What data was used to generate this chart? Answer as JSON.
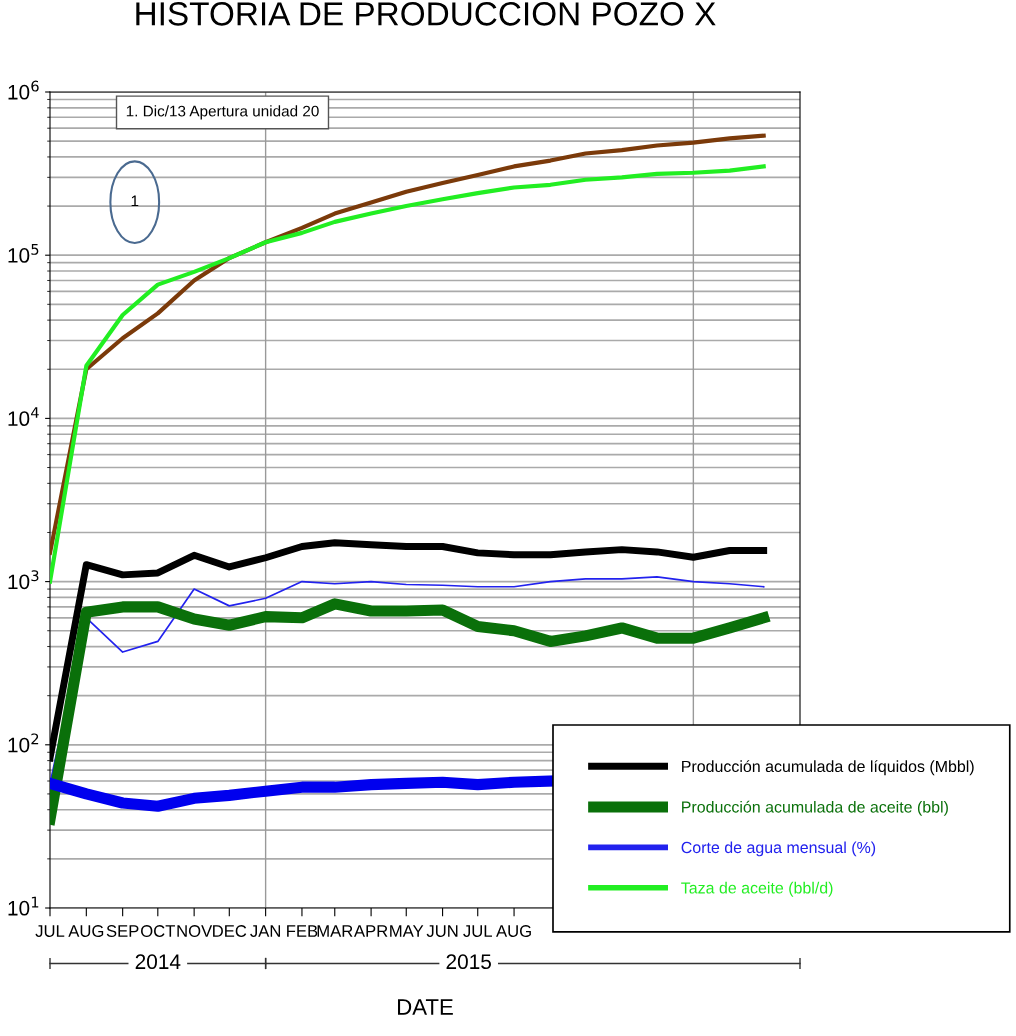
{
  "chart_data": {
    "type": "line",
    "title": "HISTORIA DE PRODUCCION POZO X",
    "xlabel": "DATE",
    "x": [
      "2014-07-01",
      "2014-08-01",
      "2014-09-01",
      "2014-10-01",
      "2014-11-01",
      "2014-12-01",
      "2015-01-01",
      "2015-02-01",
      "2015-03-01",
      "2015-04-01",
      "2015-05-01",
      "2015-06-01",
      "2015-07-01",
      "2015-08-01",
      "2015-09-01",
      "2015-10-01",
      "2015-11-01",
      "2015-12-01",
      "2016-01-01",
      "2016-02-01",
      "2016-03-01"
    ],
    "series": [
      {
        "color": "#7b3a0a",
        "values": [
          1500,
          20000,
          31000,
          44000,
          70000,
          96000,
          120000,
          147000,
          180000,
          210000,
          245000,
          277000,
          310000,
          350000,
          380000,
          420000,
          440000,
          470000,
          490000,
          520000,
          540000
        ]
      },
      {
        "name": "Taza de aceite (bbl/d)",
        "color": "#22ee22",
        "values": [
          1000,
          21000,
          43000,
          66000,
          79000,
          96000,
          120000,
          137000,
          160000,
          180000,
          200000,
          220000,
          240000,
          260000,
          270000,
          290000,
          300000,
          315000,
          320000,
          330000,
          350000
        ]
      },
      {
        "name": "Producción acumulada de líquidos (Mbbl)",
        "color": "#000000",
        "values": [
          83,
          1270,
          1100,
          1130,
          1450,
          1230,
          1400,
          1640,
          1730,
          1680,
          1640,
          1640,
          1500,
          1460,
          1460,
          1520,
          1570,
          1520,
          1410,
          1550,
          1550
        ]
      },
      {
        "name": "Corte de agua mensual (%)",
        "color": "#2222ee",
        "values": [
          58,
          600,
          370,
          430,
          900,
          710,
          790,
          1000,
          970,
          1000,
          960,
          950,
          930,
          930,
          1000,
          1040,
          1040,
          1070,
          1000,
          970,
          930
        ]
      },
      {
        "name": "Producción acumulada de aceite (bbl)",
        "color": "#0a700a",
        "values": [
          35,
          650,
          700,
          700,
          590,
          540,
          610,
          600,
          730,
          660,
          660,
          670,
          530,
          500,
          430,
          465,
          520,
          450,
          450,
          520,
          600
        ]
      },
      {
        "color": "#0000ee",
        "values": [
          58,
          50,
          44,
          42,
          47,
          49,
          52,
          55,
          55,
          57,
          58,
          59,
          57,
          59,
          60,
          null,
          null,
          null,
          null,
          null,
          null
        ]
      }
    ],
    "log": "y",
    "ylim": [
      10,
      1000000
    ],
    "yticks": [
      {
        "value": 10,
        "label": "10$^{1}$"
      },
      {
        "value": 100,
        "label": "10$^{2}$"
      },
      {
        "value": 1000,
        "label": "10$^{3}$"
      },
      {
        "value": 10000,
        "label": "10$^{4}$"
      },
      {
        "value": 100000,
        "label": "10$^{5}$"
      },
      {
        "value": 1000000,
        "label": "10$^{6}$"
      }
    ],
    "xlim": [
      "2014-07-01",
      "2016-04-01"
    ],
    "xticks": [
      {
        "value": "2014-07-01",
        "label": "JUL"
      },
      {
        "value": "2014-08-01",
        "label": "AUG"
      },
      {
        "value": "2014-09-01",
        "label": "SEP"
      },
      {
        "value": "2014-10-01",
        "label": "OCT"
      },
      {
        "value": "2014-11-01",
        "label": "NOV"
      },
      {
        "value": "2014-12-01",
        "label": "DEC"
      },
      {
        "value": "2015-01-01",
        "label": "JAN"
      },
      {
        "value": "2015-02-01",
        "label": "FEB"
      },
      {
        "value": "2015-03-01",
        "label": "MAR"
      },
      {
        "value": "2015-04-01",
        "label": "APR"
      },
      {
        "value": "2015-05-01",
        "label": "MAY"
      },
      {
        "value": "2015-06-01",
        "label": "JUN"
      },
      {
        "value": "2015-07-01",
        "label": "JUL"
      },
      {
        "value": "2015-08-01",
        "label": "AUG"
      }
    ],
    "ref_lines": [
      {
        "axis": "x",
        "value": "2015-01-01",
        "color": "#999999"
      },
      {
        "axis": "x",
        "value": "2016-01-01",
        "color": "#999999"
      }
    ],
    "annotations": [
      "1. Dic/13 Apertura unidad 20",
      "1",
      "2014",
      "2015"
    ],
    "grid": "y",
    "legend": "bottom right",
    "marker": "none",
    "line_style": "solid"
  }
}
